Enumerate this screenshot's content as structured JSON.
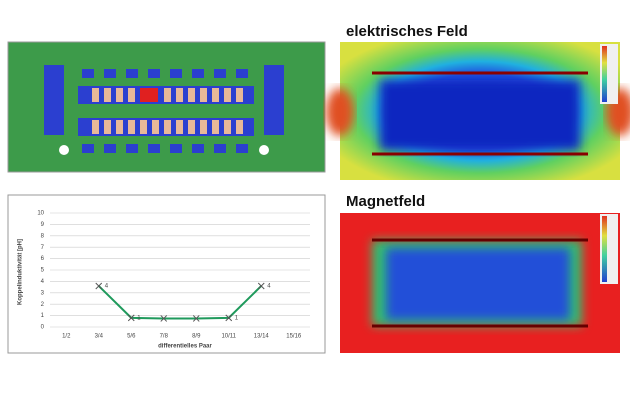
{
  "panels": {
    "efield_title": "elektrisches Feld",
    "hfield_title": "Magnetfeld"
  },
  "chart_data": {
    "type": "line",
    "x_label": "differentielles Paar",
    "y_label": "Koppelinduktivität [pH]",
    "categories": [
      "1/2",
      "3/4",
      "5/6",
      "7/8",
      "8/9",
      "10/11",
      "13/14",
      "15/16"
    ],
    "series": [
      {
        "name": "Koppelinduktivität",
        "color": "#1f9a5c",
        "values": [
          null,
          3.6,
          0.8,
          0.75,
          0.75,
          0.8,
          3.6,
          null
        ],
        "value_labels": [
          null,
          "4",
          "1",
          null,
          null,
          "1",
          "4",
          null
        ]
      }
    ],
    "ylim": [
      0,
      10
    ],
    "yticks": [
      0,
      1,
      2,
      3,
      4,
      5,
      6,
      7,
      8,
      9,
      10
    ],
    "grid": true
  }
}
